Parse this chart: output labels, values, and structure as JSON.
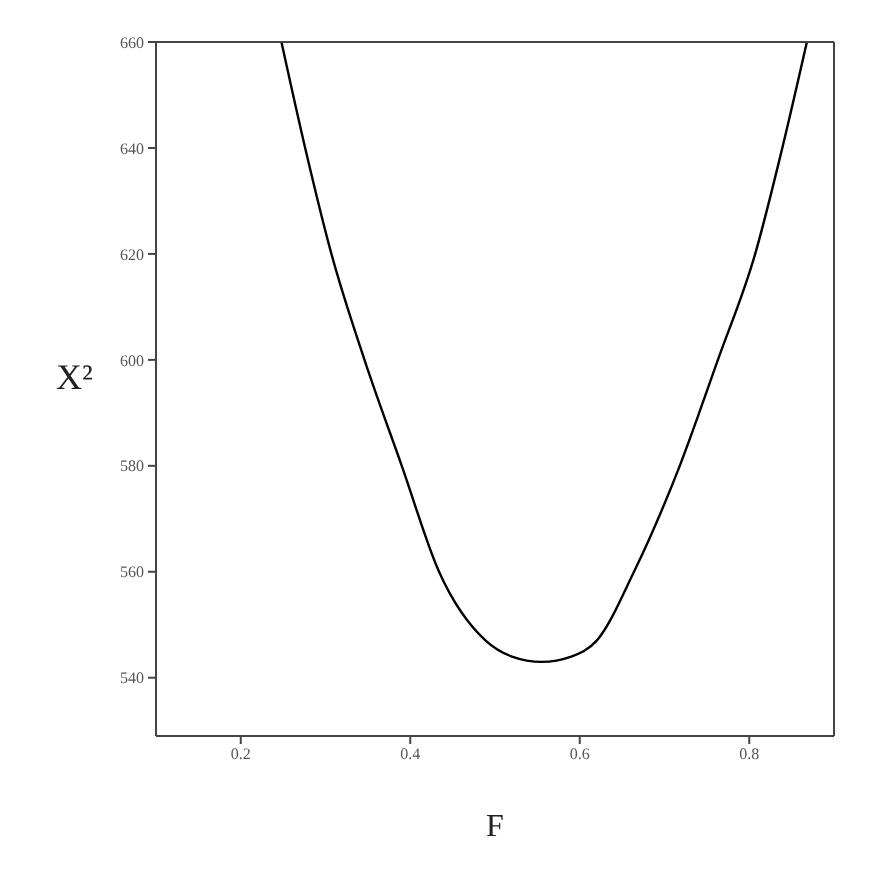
{
  "chart_data": {
    "type": "line",
    "xlabel": "F",
    "ylabel": "X²",
    "xlim": [
      0.1,
      0.9
    ],
    "ylim": [
      529,
      660
    ],
    "xticks": [
      0.2,
      0.4,
      0.6,
      0.8
    ],
    "yticks": [
      540,
      560,
      580,
      600,
      620,
      640,
      660
    ],
    "grid": false,
    "marker": "none",
    "line_style": "solid",
    "series": [
      {
        "color": "#000000",
        "x": [
          0.248,
          0.276,
          0.307,
          0.346,
          0.39,
          0.434,
          0.489,
          0.52,
          0.555,
          0.59,
          0.62,
          0.664,
          0.718,
          0.763,
          0.807,
          0.839,
          0.868
        ],
        "values": [
          660,
          640,
          620,
          600,
          580,
          560,
          547,
          544,
          543,
          544,
          547,
          560,
          580,
          600,
          620,
          640,
          660
        ]
      }
    ]
  }
}
